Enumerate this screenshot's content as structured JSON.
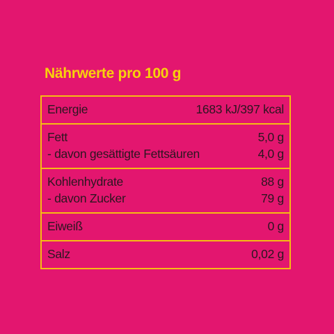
{
  "title": "Nährwerte pro 100 g",
  "table": {
    "sections": [
      {
        "rows": [
          {
            "label": "Energie",
            "value": "1683 kJ/397 kcal"
          }
        ]
      },
      {
        "rows": [
          {
            "label": "Fett",
            "value": "5,0 g"
          },
          {
            "label": "- davon gesättigte Fettsäuren",
            "value": "4,0 g"
          }
        ]
      },
      {
        "rows": [
          {
            "label": "Kohlenhydrate",
            "value": "88 g"
          },
          {
            "label": "- davon Zucker",
            "value": "79 g"
          }
        ]
      },
      {
        "rows": [
          {
            "label": "Eiweiß",
            "value": "0 g"
          }
        ]
      },
      {
        "rows": [
          {
            "label": "Salz",
            "value": "0,02 g"
          }
        ]
      }
    ]
  }
}
